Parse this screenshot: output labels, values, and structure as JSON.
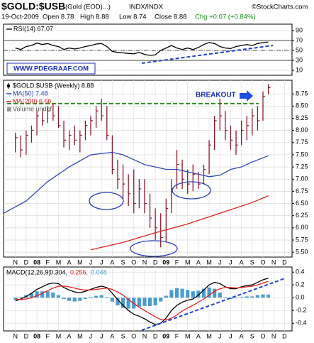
{
  "header": {
    "symbol": "$GOLD:$USB",
    "description": "(Gold (EOD)...)",
    "exchange": "INDX/INDX",
    "source": "©StockCharts.com",
    "date": "19-Oct-2009",
    "quote": [
      "Open 8.78",
      "High 8.88",
      "Low 8.74",
      "Close 8.88"
    ],
    "change": "Chg +0.07 (+0.84%)"
  },
  "watermark": "WWW.PDEGRAAF.COM",
  "chart_data": [
    {
      "type": "line",
      "title": "RSI(14) 67.07",
      "x": [
        0,
        0.5,
        1,
        1.5,
        2,
        2.5,
        3,
        3.5,
        4,
        4.5,
        5,
        5.5,
        6,
        6.5,
        7,
        7.5,
        8,
        8.5,
        9,
        9.5,
        10,
        10.5,
        11,
        11.5,
        12,
        12.5,
        13,
        13.5,
        14,
        14.5,
        15,
        15.5,
        16,
        16.5,
        17,
        17.5,
        18,
        18.5,
        19,
        19.5,
        20,
        20.5,
        21,
        21.5,
        22,
        22.5,
        23,
        23.5
      ],
      "series": [
        {
          "color": "#000000",
          "values": [
            55,
            52,
            58,
            60,
            65,
            62,
            64,
            60,
            58,
            52,
            55,
            53,
            55,
            58,
            60,
            63,
            64,
            58,
            48,
            46,
            45,
            44,
            43,
            46,
            42,
            40,
            41,
            50,
            55,
            60,
            55,
            52,
            55,
            52,
            56,
            62,
            66,
            64,
            58,
            55,
            54,
            58,
            60,
            62,
            60,
            64,
            66,
            67.07
          ]
        }
      ],
      "xlim": [
        -1.1,
        25.7
      ],
      "ylim": [
        0,
        103
      ],
      "yticks": [
        10,
        30,
        50,
        70,
        90
      ],
      "levels": [
        70,
        50,
        30
      ],
      "grid": true
    },
    {
      "type": "ohlc",
      "x": [
        0,
        0.5,
        1,
        1.5,
        2,
        2.5,
        3,
        3.5,
        4,
        4.5,
        5,
        5.5,
        6,
        6.5,
        7,
        7.5,
        8,
        8.5,
        9,
        9.5,
        10,
        10.5,
        11,
        11.5,
        12,
        12.5,
        13,
        13.5,
        14,
        14.5,
        15,
        15.5,
        16,
        16.5,
        17,
        17.5,
        18,
        18.5,
        19,
        19.5,
        20,
        20.5,
        21,
        21.5,
        22,
        22.5,
        23,
        23.5
      ],
      "series": [
        {
          "name": "$GOLD:$USB (Weekly) 8.88",
          "color": "#8b1a2b",
          "high": [
            7.95,
            7.9,
            8.0,
            8.1,
            8.4,
            8.45,
            8.5,
            8.55,
            8.5,
            8.2,
            8.0,
            8.1,
            8.0,
            8.2,
            8.3,
            8.5,
            8.65,
            8.5,
            7.9,
            7.4,
            7.3,
            7.1,
            7.2,
            7.0,
            7.0,
            6.7,
            6.4,
            6.3,
            6.6,
            7.0,
            7.6,
            7.4,
            7.2,
            7.3,
            7.15,
            7.3,
            7.8,
            8.3,
            8.65,
            8.4,
            8.1,
            8.0,
            8.2,
            8.3,
            8.45,
            8.5,
            8.8,
            8.95
          ],
          "low": [
            7.55,
            7.45,
            7.5,
            7.75,
            7.9,
            8.1,
            8.15,
            8.2,
            8.05,
            7.65,
            7.6,
            7.7,
            7.55,
            7.8,
            7.9,
            8.05,
            8.2,
            7.8,
            7.1,
            6.8,
            6.6,
            6.45,
            6.3,
            6.4,
            6.3,
            6.0,
            5.75,
            5.6,
            5.7,
            6.3,
            6.8,
            6.8,
            6.7,
            6.75,
            6.8,
            6.9,
            7.1,
            7.6,
            8.0,
            7.8,
            7.6,
            7.5,
            7.7,
            7.8,
            7.9,
            8.0,
            8.2,
            8.74
          ],
          "close": [
            7.85,
            7.6,
            7.9,
            8.0,
            8.3,
            8.2,
            8.4,
            8.3,
            8.1,
            7.8,
            7.9,
            7.8,
            7.9,
            8.1,
            8.2,
            8.4,
            8.3,
            7.9,
            7.2,
            7.0,
            6.9,
            6.7,
            6.5,
            6.8,
            6.5,
            6.2,
            6.0,
            5.8,
            6.4,
            6.8,
            7.3,
            7.0,
            6.9,
            7.1,
            6.9,
            7.2,
            7.7,
            8.2,
            8.3,
            8.0,
            7.8,
            7.7,
            8.0,
            8.1,
            8.3,
            8.2,
            8.7,
            8.88
          ]
        },
        {
          "name": "MA(50) 7.48",
          "color": "#2f45b5",
          "x": [
            -1.1,
            1,
            3,
            5,
            7,
            9,
            10,
            11,
            12,
            13,
            14,
            15,
            16,
            17,
            18,
            19,
            20,
            21,
            22,
            23.5
          ],
          "values": [
            6.3,
            6.55,
            6.95,
            7.25,
            7.5,
            7.55,
            7.5,
            7.4,
            7.3,
            7.25,
            7.2,
            7.2,
            7.15,
            7.1,
            7.05,
            7.08,
            7.2,
            7.25,
            7.35,
            7.48
          ]
        },
        {
          "name": "MA(200) 6.66",
          "color": "#e02020",
          "x": [
            7,
            10,
            13,
            16,
            19,
            22,
            23.5
          ],
          "values": [
            5.55,
            5.7,
            5.9,
            6.08,
            6.3,
            6.52,
            6.66
          ]
        }
      ],
      "legend_extra": "Volume undef",
      "hlines": [
        {
          "value": 8.55,
          "color": "#2e8b22"
        }
      ],
      "annotations": [
        "BREAKOUT"
      ],
      "xlim": [
        -1.1,
        25.7
      ],
      "ylim": [
        5.4,
        9.03
      ],
      "yticks": [
        {
          "value": 5.5,
          "label": "5.50"
        },
        5.75,
        {
          "value": 6,
          "label": "6.00"
        },
        6.25,
        {
          "value": 6.5,
          "label": "6.50"
        },
        6.75,
        {
          "value": 7,
          "label": "7.00"
        },
        7.25,
        {
          "value": 7.5,
          "label": "7.50"
        },
        7.75,
        {
          "value": 8,
          "label": "8.00"
        },
        8.25,
        {
          "value": 8.5,
          "label": "8.50"
        },
        8.75
      ],
      "xticks": [
        {
          "value": 0,
          "label": "N"
        },
        {
          "value": 1,
          "label": "D"
        },
        {
          "value": 2,
          "label": "08"
        },
        {
          "value": 3,
          "label": "F"
        },
        {
          "value": 4,
          "label": "M"
        },
        {
          "value": 5,
          "label": "A"
        },
        {
          "value": 6,
          "label": "M"
        },
        {
          "value": 7,
          "label": "J"
        },
        {
          "value": 8,
          "label": "J"
        },
        {
          "value": 9,
          "label": "A"
        },
        {
          "value": 10,
          "label": "S"
        },
        {
          "value": 11,
          "label": "O"
        },
        {
          "value": 12,
          "label": "N"
        },
        {
          "value": 13,
          "label": "D"
        },
        {
          "value": 14,
          "label": "09"
        },
        {
          "value": 15,
          "label": "F"
        },
        {
          "value": 16,
          "label": "M"
        },
        {
          "value": 17,
          "label": "A"
        },
        {
          "value": 18,
          "label": "M"
        },
        {
          "value": 19,
          "label": "J"
        },
        {
          "value": 20,
          "label": "J"
        },
        {
          "value": 21,
          "label": "A"
        },
        {
          "value": 22,
          "label": "S"
        },
        {
          "value": 23,
          "label": "O"
        },
        {
          "value": 24,
          "label": "N"
        },
        {
          "value": 25,
          "label": "D"
        }
      ],
      "grid": true
    },
    {
      "type": "macd",
      "title": "MACD(12,26,9)",
      "x": [
        0,
        0.5,
        1,
        1.5,
        2,
        2.5,
        3,
        3.5,
        4,
        4.5,
        5,
        5.5,
        6,
        6.5,
        7,
        7.5,
        8,
        8.5,
        9,
        9.5,
        10,
        10.5,
        11,
        11.5,
        12,
        12.5,
        13,
        13.5,
        14,
        14.5,
        15,
        15.5,
        16,
        16.5,
        17,
        17.5,
        18,
        18.5,
        19,
        19.5,
        20,
        20.5,
        21,
        21.5,
        22,
        22.5,
        23,
        23.5
      ],
      "series": [
        {
          "name": "0.304,",
          "color": "#000000",
          "kind": "line",
          "values": [
            -0.05,
            -0.02,
            0.02,
            0.07,
            0.13,
            0.17,
            0.21,
            0.23,
            0.22,
            0.16,
            0.12,
            0.09,
            0.08,
            0.1,
            0.13,
            0.16,
            0.18,
            0.16,
            0.07,
            -0.03,
            -0.12,
            -0.2,
            -0.26,
            -0.29,
            -0.33,
            -0.38,
            -0.42,
            -0.4,
            -0.32,
            -0.2,
            -0.12,
            -0.07,
            -0.04,
            -0.02,
            0.04,
            0.12,
            0.2,
            0.24,
            0.22,
            0.17,
            0.14,
            0.14,
            0.17,
            0.19,
            0.2,
            0.24,
            0.28,
            0.304
          ]
        },
        {
          "name": "0.256,",
          "color": "#e02020",
          "kind": "line",
          "values": [
            -0.02,
            -0.03,
            -0.02,
            0.0,
            0.03,
            0.07,
            0.11,
            0.15,
            0.18,
            0.18,
            0.17,
            0.15,
            0.13,
            0.12,
            0.12,
            0.13,
            0.14,
            0.15,
            0.13,
            0.09,
            0.04,
            -0.03,
            -0.09,
            -0.15,
            -0.2,
            -0.25,
            -0.3,
            -0.34,
            -0.35,
            -0.32,
            -0.27,
            -0.21,
            -0.16,
            -0.12,
            -0.07,
            -0.02,
            0.04,
            0.1,
            0.14,
            0.16,
            0.16,
            0.15,
            0.16,
            0.17,
            0.18,
            0.2,
            0.23,
            0.256
          ]
        },
        {
          "name": "0.048",
          "color": "#4a9ccc",
          "kind": "histogram",
          "values": [
            -0.03,
            0.01,
            0.04,
            0.07,
            0.1,
            0.1,
            0.1,
            0.08,
            0.04,
            -0.02,
            -0.05,
            -0.06,
            -0.05,
            -0.02,
            0.01,
            0.03,
            0.04,
            0.01,
            -0.06,
            -0.12,
            -0.16,
            -0.17,
            -0.17,
            -0.14,
            -0.13,
            -0.13,
            -0.12,
            -0.06,
            0.03,
            0.12,
            0.15,
            0.14,
            0.12,
            0.1,
            0.11,
            0.14,
            0.16,
            0.14,
            0.08,
            0.01,
            -0.02,
            -0.01,
            0.01,
            0.02,
            0.02,
            0.04,
            0.05,
            0.048
          ]
        }
      ],
      "xlim": [
        -1.1,
        25.7
      ],
      "ylim": [
        -0.52,
        0.48
      ],
      "yticks": [
        0.4,
        0.2,
        {
          "value": 0,
          "label": "0.0"
        },
        -0.2,
        -0.4
      ],
      "xticks": [
        {
          "value": 0,
          "label": "N"
        },
        {
          "value": 1,
          "label": "D"
        },
        {
          "value": 2,
          "label": "08"
        },
        {
          "value": 3,
          "label": "F"
        },
        {
          "value": 4,
          "label": "M"
        },
        {
          "value": 5,
          "label": "A"
        },
        {
          "value": 6,
          "label": "M"
        },
        {
          "value": 7,
          "label": "J"
        },
        {
          "value": 8,
          "label": "J"
        },
        {
          "value": 9,
          "label": "A"
        },
        {
          "value": 10,
          "label": "S"
        },
        {
          "value": 11,
          "label": "O"
        },
        {
          "value": 12,
          "label": "N"
        },
        {
          "value": 13,
          "label": "D"
        },
        {
          "value": 14,
          "label": "09"
        },
        {
          "value": 15,
          "label": "F"
        },
        {
          "value": 16,
          "label": "M"
        },
        {
          "value": 17,
          "label": "A"
        },
        {
          "value": 18,
          "label": "M"
        },
        {
          "value": 19,
          "label": "J"
        },
        {
          "value": 20,
          "label": "J"
        },
        {
          "value": 21,
          "label": "A"
        },
        {
          "value": 22,
          "label": "S"
        },
        {
          "value": 23,
          "label": "O"
        },
        {
          "value": 24,
          "label": "N"
        },
        {
          "value": 25,
          "label": "D"
        }
      ],
      "grid": true
    }
  ]
}
